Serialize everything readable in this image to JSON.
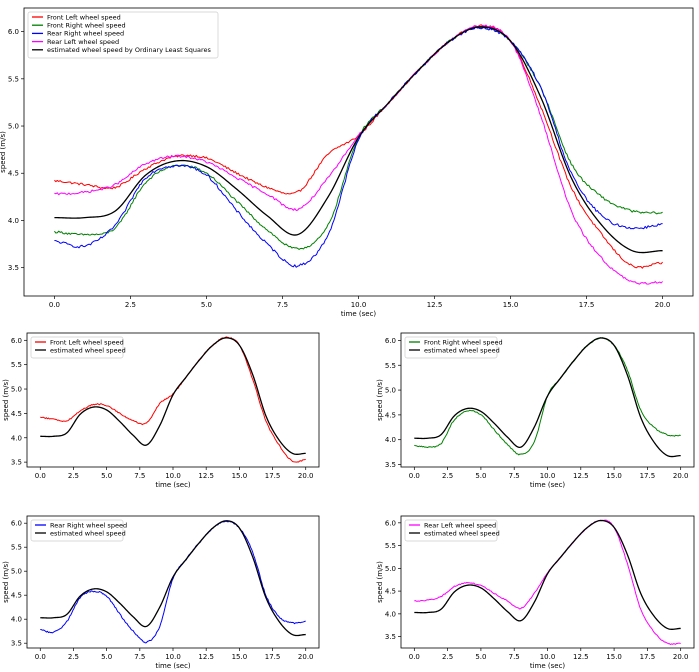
{
  "chart_data": [
    {
      "type": "line",
      "xlabel": "time (sec)",
      "ylabel": "speed (m/s)",
      "xlim": [
        -1.0,
        21.0
      ],
      "ylim": [
        3.2,
        6.25
      ],
      "xticks": [
        0.0,
        2.5,
        5.0,
        7.5,
        10.0,
        12.5,
        15.0,
        17.5,
        20.0
      ],
      "xtick_labels": [
        "0.0",
        "2.5",
        "5.0",
        "7.5",
        "10.0",
        "12.5",
        "15.0",
        "17.5",
        "20.0"
      ],
      "yticks": [
        3.5,
        4.0,
        4.5,
        5.0,
        5.5,
        6.0
      ],
      "ytick_labels": [
        "3.5",
        "4.0",
        "4.5",
        "5.0",
        "5.5",
        "6.0"
      ],
      "grid": false,
      "legend_position": "top-left",
      "x": [
        0,
        1,
        2,
        3,
        4,
        5,
        6,
        7,
        8,
        9,
        10,
        11,
        12,
        13,
        14,
        15,
        16,
        17,
        18,
        19,
        20
      ],
      "series": [
        {
          "name": "Front Left wheel speed",
          "color": "#ff0000",
          "noise": 0.012,
          "values": [
            4.42,
            4.38,
            4.35,
            4.55,
            4.68,
            4.66,
            4.5,
            4.35,
            4.3,
            4.7,
            4.9,
            5.25,
            5.6,
            5.9,
            6.06,
            5.9,
            5.2,
            4.35,
            3.85,
            3.52,
            3.55
          ]
        },
        {
          "name": "Front Right wheel speed",
          "color": "#008000",
          "noise": 0.012,
          "values": [
            3.88,
            3.85,
            3.92,
            4.4,
            4.58,
            4.5,
            4.2,
            3.9,
            3.7,
            3.95,
            4.88,
            5.25,
            5.6,
            5.9,
            6.05,
            5.9,
            5.4,
            4.6,
            4.25,
            4.1,
            4.08
          ]
        },
        {
          "name": "Rear Right wheel speed",
          "color": "#0000ff",
          "noise": 0.014,
          "values": [
            3.78,
            3.73,
            3.95,
            4.45,
            4.58,
            4.48,
            4.1,
            3.75,
            3.52,
            3.85,
            4.85,
            5.25,
            5.6,
            5.9,
            6.04,
            5.9,
            5.4,
            4.5,
            4.05,
            3.92,
            3.96
          ]
        },
        {
          "name": "Rear Left wheel speed",
          "color": "#ff00ff",
          "noise": 0.012,
          "values": [
            4.28,
            4.3,
            4.38,
            4.6,
            4.68,
            4.62,
            4.45,
            4.28,
            4.12,
            4.45,
            4.9,
            5.25,
            5.6,
            5.9,
            6.06,
            5.9,
            5.1,
            4.1,
            3.6,
            3.35,
            3.35
          ]
        },
        {
          "name": "estimated wheel speed by Ordinary Least Squares",
          "color": "#000000",
          "noise": 0.0,
          "values": [
            4.03,
            4.03,
            4.1,
            4.48,
            4.63,
            4.57,
            4.33,
            4.05,
            3.85,
            4.25,
            4.88,
            5.25,
            5.6,
            5.9,
            6.05,
            5.9,
            5.3,
            4.45,
            3.95,
            3.68,
            3.68
          ]
        }
      ]
    },
    {
      "type": "line",
      "xlabel": "time (sec)",
      "ylabel": "speed (m/s)",
      "xlim": [
        -1.0,
        21.0
      ],
      "ylim": [
        3.4,
        6.15
      ],
      "xticks": [
        0.0,
        2.5,
        5.0,
        7.5,
        10.0,
        12.5,
        15.0,
        17.5,
        20.0
      ],
      "xtick_labels": [
        "0.0",
        "2.5",
        "5.0",
        "7.5",
        "10.0",
        "12.5",
        "15.0",
        "17.5",
        "20.0"
      ],
      "yticks": [
        3.5,
        4.0,
        4.5,
        5.0,
        5.5,
        6.0
      ],
      "ytick_labels": [
        "3.5",
        "4.0",
        "4.5",
        "5.0",
        "5.5",
        "6.0"
      ],
      "grid": false,
      "legend_position": "top-left",
      "x": [
        0,
        1,
        2,
        3,
        4,
        5,
        6,
        7,
        8,
        9,
        10,
        11,
        12,
        13,
        14,
        15,
        16,
        17,
        18,
        19,
        20
      ],
      "series": [
        {
          "name": "Front Left wheel speed",
          "color": "#ff0000",
          "noise": 0.012,
          "values": [
            4.42,
            4.38,
            4.35,
            4.55,
            4.68,
            4.66,
            4.5,
            4.35,
            4.3,
            4.7,
            4.9,
            5.25,
            5.6,
            5.9,
            6.06,
            5.9,
            5.2,
            4.35,
            3.85,
            3.52,
            3.55
          ]
        },
        {
          "name": "estimated wheel speed",
          "color": "#000000",
          "noise": 0.0,
          "values": [
            4.03,
            4.03,
            4.1,
            4.48,
            4.63,
            4.57,
            4.33,
            4.05,
            3.85,
            4.25,
            4.88,
            5.25,
            5.6,
            5.9,
            6.05,
            5.9,
            5.3,
            4.45,
            3.95,
            3.68,
            3.68
          ]
        }
      ]
    },
    {
      "type": "line",
      "xlabel": "time (sec)",
      "ylabel": "speed (m/s)",
      "xlim": [
        -1.0,
        21.0
      ],
      "ylim": [
        3.45,
        6.15
      ],
      "xticks": [
        0.0,
        2.5,
        5.0,
        7.5,
        10.0,
        12.5,
        15.0,
        17.5,
        20.0
      ],
      "xtick_labels": [
        "0.0",
        "2.5",
        "5.0",
        "7.5",
        "10.0",
        "12.5",
        "15.0",
        "17.5",
        "20.0"
      ],
      "yticks": [
        3.5,
        4.0,
        4.5,
        5.0,
        5.5,
        6.0
      ],
      "ytick_labels": [
        "3.5",
        "4.0",
        "4.5",
        "5.0",
        "5.5",
        "6.0"
      ],
      "grid": false,
      "legend_position": "top-left",
      "x": [
        0,
        1,
        2,
        3,
        4,
        5,
        6,
        7,
        8,
        9,
        10,
        11,
        12,
        13,
        14,
        15,
        16,
        17,
        18,
        19,
        20
      ],
      "series": [
        {
          "name": "Front Right wheel speed",
          "color": "#008000",
          "noise": 0.012,
          "values": [
            3.88,
            3.85,
            3.92,
            4.4,
            4.58,
            4.5,
            4.2,
            3.9,
            3.7,
            3.95,
            4.88,
            5.25,
            5.6,
            5.9,
            6.05,
            5.9,
            5.4,
            4.6,
            4.25,
            4.1,
            4.08
          ]
        },
        {
          "name": "estimated wheel speed",
          "color": "#000000",
          "noise": 0.0,
          "values": [
            4.03,
            4.03,
            4.1,
            4.48,
            4.63,
            4.57,
            4.33,
            4.05,
            3.85,
            4.25,
            4.88,
            5.25,
            5.6,
            5.9,
            6.05,
            5.9,
            5.3,
            4.45,
            3.95,
            3.68,
            3.68
          ]
        }
      ]
    },
    {
      "type": "line",
      "xlabel": "time (sec)",
      "ylabel": "speed (m/s)",
      "xlim": [
        -1.0,
        21.0
      ],
      "ylim": [
        3.4,
        6.15
      ],
      "xticks": [
        0.0,
        2.5,
        5.0,
        7.5,
        10.0,
        12.5,
        15.0,
        17.5,
        20.0
      ],
      "xtick_labels": [
        "0.0",
        "2.5",
        "5.0",
        "7.5",
        "10.0",
        "12.5",
        "15.0",
        "17.5",
        "20.0"
      ],
      "yticks": [
        3.5,
        4.0,
        4.5,
        5.0,
        5.5,
        6.0
      ],
      "ytick_labels": [
        "3.5",
        "4.0",
        "4.5",
        "5.0",
        "5.5",
        "6.0"
      ],
      "grid": false,
      "legend_position": "top-left",
      "x": [
        0,
        1,
        2,
        3,
        4,
        5,
        6,
        7,
        8,
        9,
        10,
        11,
        12,
        13,
        14,
        15,
        16,
        17,
        18,
        19,
        20
      ],
      "series": [
        {
          "name": "Rear Right wheel speed",
          "color": "#0000ff",
          "noise": 0.014,
          "values": [
            3.78,
            3.73,
            3.95,
            4.45,
            4.58,
            4.48,
            4.1,
            3.75,
            3.52,
            3.85,
            4.85,
            5.25,
            5.6,
            5.9,
            6.04,
            5.9,
            5.4,
            4.5,
            4.05,
            3.92,
            3.96
          ]
        },
        {
          "name": "estimated wheel speed",
          "color": "#000000",
          "noise": 0.0,
          "values": [
            4.03,
            4.03,
            4.1,
            4.48,
            4.63,
            4.57,
            4.33,
            4.05,
            3.85,
            4.25,
            4.88,
            5.25,
            5.6,
            5.9,
            6.05,
            5.9,
            5.3,
            4.45,
            3.95,
            3.68,
            3.68
          ]
        }
      ]
    },
    {
      "type": "line",
      "xlabel": "time (sec)",
      "ylabel": "speed (m/s)",
      "xlim": [
        -1.0,
        21.0
      ],
      "ylim": [
        3.25,
        6.15
      ],
      "xticks": [
        0.0,
        2.5,
        5.0,
        7.5,
        10.0,
        12.5,
        15.0,
        17.5,
        20.0
      ],
      "xtick_labels": [
        "0.0",
        "2.5",
        "5.0",
        "7.5",
        "10.0",
        "12.5",
        "15.0",
        "17.5",
        "20.0"
      ],
      "yticks": [
        3.5,
        4.0,
        4.5,
        5.0,
        5.5,
        6.0
      ],
      "ytick_labels": [
        "3.5",
        "4.0",
        "4.5",
        "5.0",
        "5.5",
        "6.0"
      ],
      "grid": false,
      "legend_position": "top-left",
      "x": [
        0,
        1,
        2,
        3,
        4,
        5,
        6,
        7,
        8,
        9,
        10,
        11,
        12,
        13,
        14,
        15,
        16,
        17,
        18,
        19,
        20
      ],
      "series": [
        {
          "name": "Rear Left wheel speed",
          "color": "#ff00ff",
          "noise": 0.012,
          "values": [
            4.28,
            4.3,
            4.38,
            4.6,
            4.68,
            4.62,
            4.45,
            4.28,
            4.12,
            4.45,
            4.9,
            5.25,
            5.6,
            5.9,
            6.06,
            5.9,
            5.1,
            4.1,
            3.6,
            3.35,
            3.35
          ]
        },
        {
          "name": "estimated wheel speed",
          "color": "#000000",
          "noise": 0.0,
          "values": [
            4.03,
            4.03,
            4.1,
            4.48,
            4.63,
            4.57,
            4.33,
            4.05,
            3.85,
            4.25,
            4.88,
            5.25,
            5.6,
            5.9,
            6.05,
            5.9,
            5.3,
            4.45,
            3.95,
            3.68,
            3.68
          ]
        }
      ]
    }
  ]
}
